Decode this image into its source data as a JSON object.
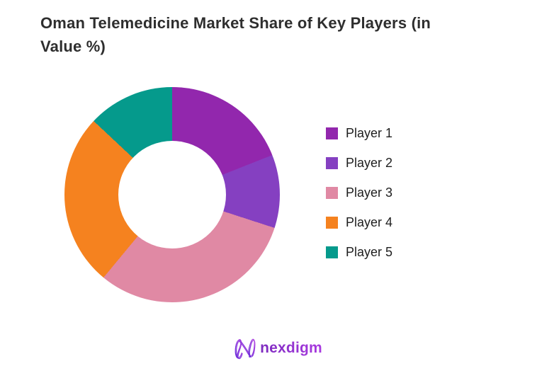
{
  "page": {
    "background_color": "#ffffff"
  },
  "header": {
    "title": "Oman Telemedicine Market Share of Key Players (in\nValue %)"
  },
  "chart_data": {
    "type": "pie",
    "subtype": "donut",
    "title": "Oman Telemedicine Market Share of Key Players (in Value %)",
    "labels": [
      "Player 1",
      "Player 2",
      "Player 3",
      "Player 4",
      "Player 5"
    ],
    "values": [
      19,
      11,
      31,
      26,
      13
    ],
    "value_unit": "%",
    "colors": [
      "#9227ad",
      "#8540c1",
      "#e089a4",
      "#f5821f",
      "#059a8c"
    ],
    "start_angle_deg": 0,
    "direction": "clockwise",
    "inner_radius_ratio": 0.5,
    "legend_position": "right",
    "data_labels_shown": false
  },
  "footer": {
    "brand": "nexdigm",
    "brand_color_start": "#7d2bbf",
    "brand_color_end": "#a93ae0"
  }
}
